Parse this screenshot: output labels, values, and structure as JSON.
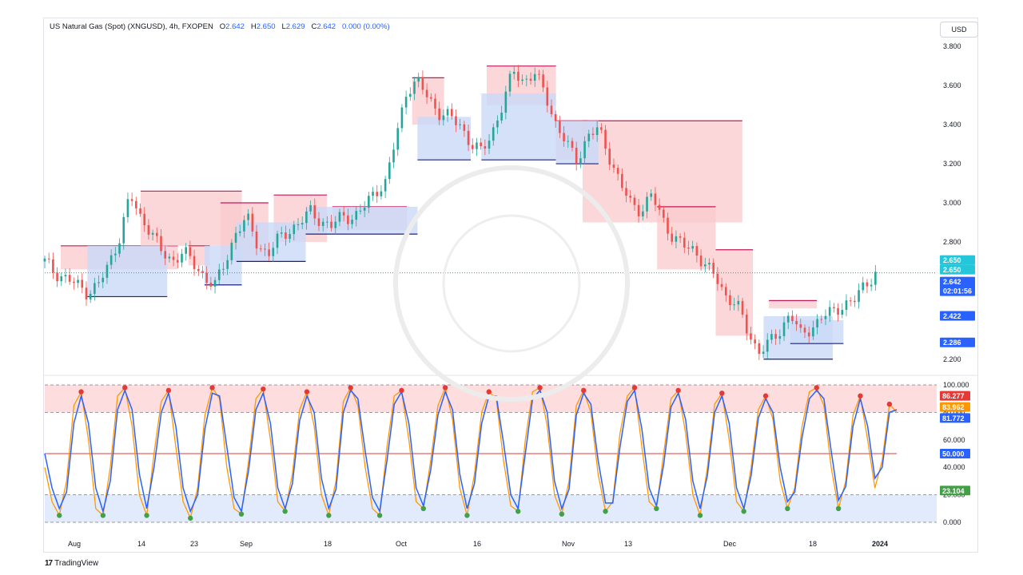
{
  "header": {
    "symbol": "US Natural Gas (Spot) (XNGUSD), 4h, FXOPEN",
    "o_label": "O",
    "o": "2.642",
    "h_label": "H",
    "h": "2.650",
    "l_label": "L",
    "l": "2.629",
    "c_label": "C",
    "c": "2.642",
    "change": "0.000 (0.00%)"
  },
  "currency_button": "USD",
  "branding": {
    "logo_mark": "17",
    "name": "TradingView"
  },
  "colors": {
    "up": "#26a69a",
    "down": "#ef5350",
    "bull_zone": "#c9d9f8",
    "bear_zone": "#f9c9cc",
    "osc_k": "#2962ff",
    "osc_d": "#ff9800",
    "dot_red": "#e53935",
    "dot_green": "#43a047"
  },
  "chart_data": [
    {
      "type": "candlestick",
      "title": "US Natural Gas (Spot) (XNGUSD), 4h, FXOPEN",
      "ylim": [
        2.15,
        3.85
      ],
      "y_ticks": [
        "3.800",
        "3.600",
        "3.400",
        "3.200",
        "3.000",
        "2.800",
        "2.200"
      ],
      "x_ticks": [
        "Aug",
        "14",
        "23",
        "Sep",
        "18",
        "Oct",
        "16",
        "Nov",
        "13",
        "Dec",
        "18",
        "2024"
      ],
      "close_path": [
        [
          0,
          2.7
        ],
        [
          2,
          2.64
        ],
        [
          5,
          2.6
        ],
        [
          8,
          2.54
        ],
        [
          10,
          2.58
        ],
        [
          12,
          2.68
        ],
        [
          14,
          2.82
        ],
        [
          16,
          3.04
        ],
        [
          18,
          2.92
        ],
        [
          20,
          2.86
        ],
        [
          22,
          2.74
        ],
        [
          24,
          2.7
        ],
        [
          26,
          2.76
        ],
        [
          28,
          2.68
        ],
        [
          30,
          2.62
        ],
        [
          32,
          2.58
        ],
        [
          34,
          2.7
        ],
        [
          36,
          2.86
        ],
        [
          38,
          2.92
        ],
        [
          40,
          2.78
        ],
        [
          42,
          2.74
        ],
        [
          44,
          2.82
        ],
        [
          46,
          2.86
        ],
        [
          48,
          2.9
        ],
        [
          50,
          2.96
        ],
        [
          52,
          2.9
        ],
        [
          54,
          2.88
        ],
        [
          56,
          2.94
        ],
        [
          58,
          2.92
        ],
        [
          60,
          2.98
        ],
        [
          62,
          3.06
        ],
        [
          64,
          3.1
        ],
        [
          66,
          3.34
        ],
        [
          68,
          3.58
        ],
        [
          70,
          3.62
        ],
        [
          72,
          3.54
        ],
        [
          74,
          3.46
        ],
        [
          76,
          3.44
        ],
        [
          78,
          3.4
        ],
        [
          80,
          3.3
        ],
        [
          82,
          3.26
        ],
        [
          84,
          3.36
        ],
        [
          86,
          3.5
        ],
        [
          88,
          3.68
        ],
        [
          90,
          3.62
        ],
        [
          92,
          3.66
        ],
        [
          94,
          3.56
        ],
        [
          96,
          3.4
        ],
        [
          98,
          3.3
        ],
        [
          100,
          3.22
        ],
        [
          102,
          3.34
        ],
        [
          104,
          3.38
        ],
        [
          106,
          3.24
        ],
        [
          108,
          3.1
        ],
        [
          110,
          3.0
        ],
        [
          112,
          2.96
        ],
        [
          114,
          3.04
        ],
        [
          116,
          2.92
        ],
        [
          118,
          2.82
        ],
        [
          120,
          2.78
        ],
        [
          122,
          2.76
        ],
        [
          124,
          2.68
        ],
        [
          126,
          2.62
        ],
        [
          128,
          2.52
        ],
        [
          130,
          2.48
        ],
        [
          132,
          2.34
        ],
        [
          134,
          2.24
        ],
        [
          136,
          2.28
        ],
        [
          138,
          2.34
        ],
        [
          140,
          2.44
        ],
        [
          142,
          2.32
        ],
        [
          144,
          2.36
        ],
        [
          146,
          2.42
        ],
        [
          148,
          2.44
        ],
        [
          150,
          2.48
        ],
        [
          152,
          2.5
        ],
        [
          154,
          2.58
        ],
        [
          156,
          2.64
        ]
      ],
      "x_max": 160,
      "price_levels": [
        {
          "label": "2.650",
          "value": 2.65,
          "color": "#26c6da"
        },
        {
          "label": "2.650",
          "value": 2.65,
          "color": "#26c6da"
        },
        {
          "label": "2.642",
          "value": 2.642,
          "color": "#2962ff",
          "sub": "02:01:56"
        },
        {
          "label": "2.422",
          "value": 2.422,
          "color": "#2962ff"
        },
        {
          "label": "2.286",
          "value": 2.286,
          "color": "#2962ff"
        }
      ],
      "current_price": 2.642,
      "bear_zones": [
        [
          3,
          25,
          2.66,
          2.78
        ],
        [
          18,
          37,
          2.78,
          3.06
        ],
        [
          27,
          31,
          2.68,
          2.78
        ],
        [
          33,
          42,
          2.7,
          3.0
        ],
        [
          43,
          53,
          2.8,
          3.04
        ],
        [
          54,
          68,
          2.86,
          2.98
        ],
        [
          69,
          75,
          3.4,
          3.64
        ],
        [
          83,
          96,
          3.5,
          3.7
        ],
        [
          96,
          102,
          3.22,
          3.42
        ],
        [
          101,
          131,
          2.9,
          3.42
        ],
        [
          115,
          126,
          2.66,
          2.98
        ],
        [
          126,
          133,
          2.32,
          2.76
        ],
        [
          136,
          145,
          2.46,
          2.5
        ]
      ],
      "bull_zones": [
        [
          8,
          23,
          2.52,
          2.78
        ],
        [
          30,
          37,
          2.58,
          2.78
        ],
        [
          36,
          49,
          2.7,
          2.9
        ],
        [
          49,
          70,
          2.84,
          2.98
        ],
        [
          70,
          80,
          3.22,
          3.44
        ],
        [
          82,
          96,
          3.22,
          3.56
        ],
        [
          96,
          104,
          3.2,
          3.42
        ],
        [
          135,
          148,
          2.2,
          2.42
        ],
        [
          140,
          150,
          2.28,
          2.4
        ]
      ]
    },
    {
      "type": "line",
      "title": "Stochastic oscillator",
      "ylim": [
        0,
        100
      ],
      "y_ticks": [
        "100.000",
        "80.000",
        "60.000",
        "40.000",
        "20.000",
        "0.000"
      ],
      "levels": [
        80,
        50,
        20
      ],
      "series": [
        {
          "values": [
            40,
            15,
            5,
            30,
            85,
            95,
            60,
            10,
            5,
            40,
            92,
            98,
            70,
            20,
            5,
            50,
            88,
            96,
            55,
            15,
            3,
            25,
            78,
            98,
            90,
            40,
            10,
            6,
            45,
            90,
            97,
            60,
            15,
            8,
            35,
            82,
            95,
            70,
            20,
            5,
            30,
            88,
            98,
            85,
            40,
            10,
            5,
            55,
            92,
            96,
            60,
            15,
            10,
            45,
            85,
            98,
            75,
            25,
            5,
            35,
            80,
            95,
            90,
            45,
            12,
            8,
            60,
            95,
            98,
            70,
            20,
            6,
            30,
            85,
            96,
            80,
            35,
            8,
            15,
            65,
            92,
            98,
            55,
            15,
            10,
            50,
            90,
            96,
            65,
            20,
            5,
            40,
            86,
            94,
            60,
            15,
            8,
            40,
            82,
            92,
            75,
            30,
            10,
            25,
            70,
            95,
            98,
            85,
            40,
            10,
            30,
            78,
            92,
            60,
            25,
            45,
            86,
            80
          ]
        },
        {
          "values": [
            50,
            25,
            10,
            22,
            72,
            92,
            72,
            25,
            8,
            30,
            82,
            96,
            82,
            35,
            10,
            40,
            80,
            94,
            70,
            25,
            8,
            20,
            68,
            94,
            92,
            55,
            18,
            8,
            38,
            82,
            94,
            72,
            25,
            10,
            28,
            74,
            92,
            80,
            32,
            10,
            24,
            80,
            96,
            90,
            52,
            18,
            8,
            45,
            86,
            95,
            72,
            25,
            12,
            38,
            78,
            95,
            82,
            35,
            10,
            28,
            72,
            92,
            92,
            58,
            20,
            10,
            50,
            90,
            96,
            80,
            30,
            10,
            24,
            78,
            94,
            86,
            45,
            14,
            14,
            55,
            88,
            96,
            68,
            25,
            12,
            42,
            84,
            94,
            75,
            30,
            10,
            34,
            80,
            92,
            72,
            25,
            10,
            34,
            76,
            90,
            80,
            40,
            15,
            22,
            62,
            90,
            96,
            90,
            52,
            16,
            26,
            70,
            90,
            70,
            32,
            40,
            80,
            82
          ]
        }
      ],
      "price_levels": [
        {
          "label": "86.277",
          "value": 86.277,
          "color": "#e53935"
        },
        {
          "label": "83.962",
          "value": 83.962,
          "color": "#ff9800"
        },
        {
          "label": "81.772",
          "value": 81.772,
          "color": "#2962ff"
        },
        {
          "label": "50.000",
          "value": 50.0,
          "color": "#2962ff"
        },
        {
          "label": "23.104",
          "value": 23.104,
          "color": "#43a047"
        }
      ]
    }
  ]
}
